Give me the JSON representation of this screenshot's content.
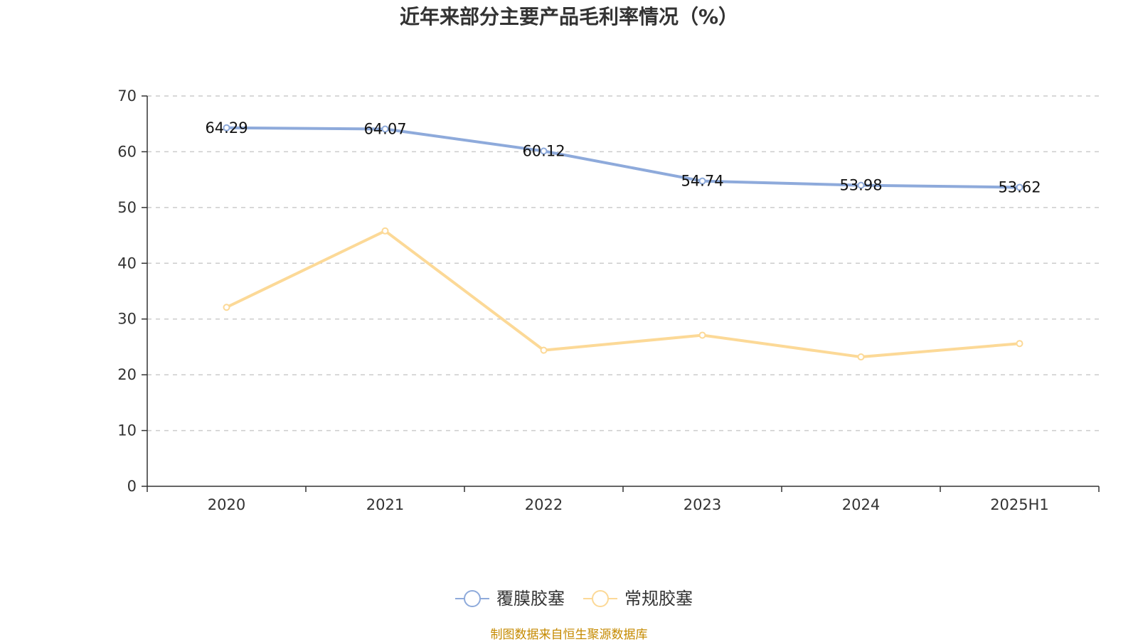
{
  "chart_data": {
    "type": "line",
    "title": "近年来部分主要产品毛利率情况（%）",
    "categories": [
      "2020",
      "2021",
      "2022",
      "2023",
      "2024",
      "2025H1"
    ],
    "ylim": [
      0,
      70
    ],
    "yticks": [
      0,
      10,
      20,
      30,
      40,
      50,
      60,
      70
    ],
    "grid": true,
    "legend_position": "bottom",
    "series": [
      {
        "name": "覆膜胶塞",
        "color": "#8eaadb",
        "show_labels": true,
        "values": [
          64.29,
          64.07,
          60.12,
          54.74,
          53.98,
          53.62
        ]
      },
      {
        "name": "常规胶塞",
        "color": "#fcd997",
        "show_labels": false,
        "values": [
          32.1,
          45.8,
          24.4,
          27.1,
          23.2,
          25.6
        ]
      }
    ]
  },
  "source": "制图数据来自恒生聚源数据库"
}
